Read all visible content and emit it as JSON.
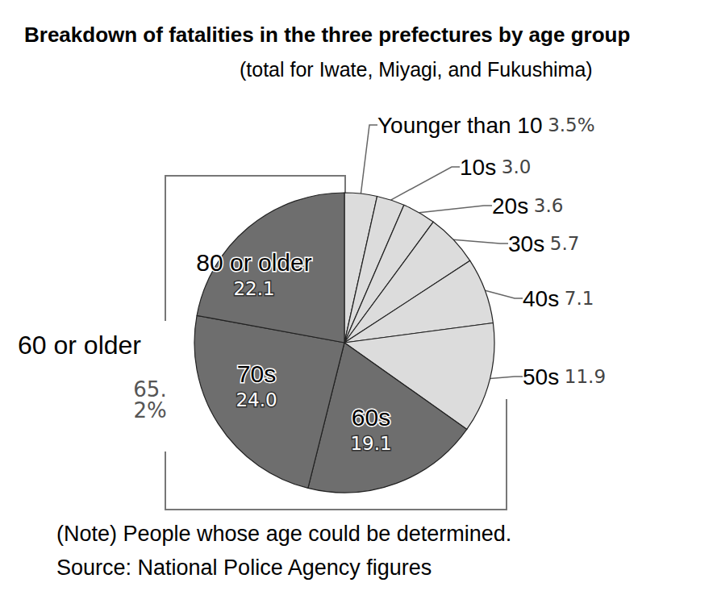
{
  "chart_data": {
    "type": "pie",
    "title": "Breakdown of fatalities in the three prefectures by age group",
    "subtitle": "(total for Iwate, Miyagi, and Fukushima)",
    "categories": [
      "Younger than 10",
      "10s",
      "20s",
      "30s",
      "40s",
      "50s",
      "60s",
      "70s",
      "80 or older"
    ],
    "values": [
      3.5,
      3.0,
      3.6,
      5.7,
      7.1,
      11.9,
      19.1,
      24.0,
      22.1
    ],
    "value_labels": [
      "3.5%",
      "3.0",
      "3.6",
      "5.7",
      "7.1",
      "11.9",
      "19.1",
      "24.0",
      "22.1"
    ],
    "colors": [
      "#dcdcdc",
      "#dcdcdc",
      "#dcdcdc",
      "#dcdcdc",
      "#dcdcdc",
      "#dcdcdc",
      "#6e6e6e",
      "#6e6e6e",
      "#6e6e6e"
    ],
    "data_labels": true,
    "annotations": [
      {
        "text": "60 or older",
        "value": 65.2,
        "value_label": "65.2%"
      }
    ],
    "notes": [
      "(Note) People whose age could be determined.",
      "Source: National Police Agency figures"
    ]
  }
}
